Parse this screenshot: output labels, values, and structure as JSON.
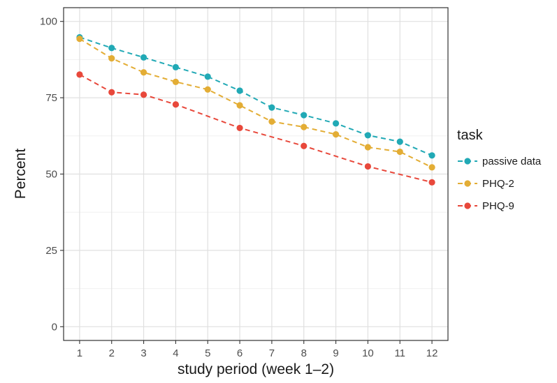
{
  "chart_data": {
    "type": "line",
    "title": "",
    "xlabel": "study period (week 1–2)",
    "ylabel": "Percent",
    "x": [
      1,
      2,
      3,
      4,
      5,
      6,
      7,
      8,
      9,
      10,
      11,
      12
    ],
    "x_tick_labels": [
      "1",
      "2",
      "3",
      "4",
      "5",
      "6",
      "7",
      "8",
      "9",
      "10",
      "11",
      "12"
    ],
    "xlim": [
      0.5,
      12.5
    ],
    "ylim": [
      -4.5,
      104.5
    ],
    "y_ticks": [
      0,
      25,
      50,
      75,
      100
    ],
    "y_tick_labels": [
      "0",
      "25",
      "50",
      "75",
      "100"
    ],
    "grid": true,
    "line_style": "dashed",
    "legend": {
      "title": "task",
      "position": "right"
    },
    "series": [
      {
        "name": "passive data",
        "color": "#21a9b5",
        "values": [
          94.8,
          91.3,
          88.2,
          85.0,
          81.9,
          77.3,
          71.8,
          69.3,
          66.6,
          62.7,
          60.6,
          56.1
        ]
      },
      {
        "name": "PHQ-2",
        "color": "#e3ad35",
        "values": [
          94.3,
          87.9,
          83.3,
          80.2,
          77.7,
          72.5,
          67.2,
          65.4,
          63.0,
          58.8,
          57.3,
          52.2
        ]
      },
      {
        "name": "PHQ-9",
        "color": "#e8483b",
        "values": [
          82.6,
          76.8,
          76.0,
          72.8,
          null,
          65.1,
          null,
          59.2,
          null,
          52.5,
          null,
          47.3
        ]
      }
    ]
  }
}
